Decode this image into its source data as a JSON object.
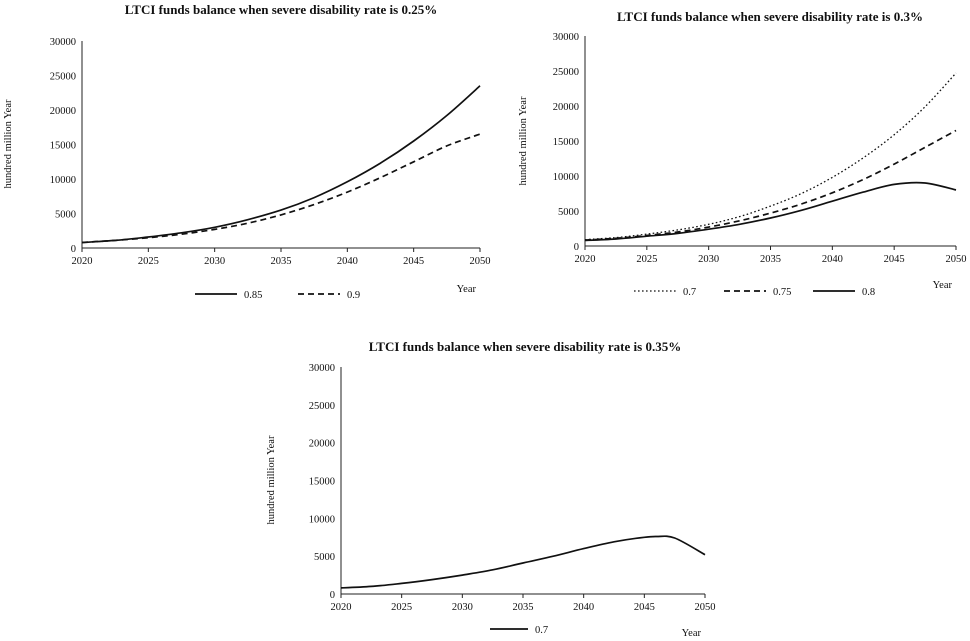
{
  "chart_data": [
    {
      "type": "line",
      "title": "LTCI funds balance when severe disability rate is 0.25%",
      "xlabel": "Year",
      "ylabel": "hundred million Year",
      "xlim": [
        2020,
        2050
      ],
      "ylim": [
        0,
        30000
      ],
      "xticks": [
        "2020",
        "2025",
        "2030",
        "2035",
        "2040",
        "2045",
        "2050"
      ],
      "yticks": [
        "0",
        "5000",
        "10000",
        "15000",
        "20000",
        "25000",
        "30000"
      ],
      "grid": false,
      "legend_position": "bottom",
      "series": [
        {
          "name": "0.85",
          "style": "solid",
          "x": [
            2020,
            2022.5,
            2025,
            2027.5,
            2030,
            2032.5,
            2035,
            2037.5,
            2040,
            2042.5,
            2045,
            2047.5,
            2050
          ],
          "values": [
            800,
            1100,
            1600,
            2200,
            3000,
            4100,
            5500,
            7300,
            9600,
            12300,
            15500,
            19200,
            23500
          ]
        },
        {
          "name": "0.9",
          "style": "dashed",
          "x": [
            2020,
            2022.5,
            2025,
            2027.5,
            2030,
            2032.5,
            2035,
            2037.5,
            2040,
            2042.5,
            2045,
            2047.5,
            2050
          ],
          "values": [
            800,
            1100,
            1500,
            2000,
            2700,
            3600,
            4800,
            6300,
            8100,
            10200,
            12500,
            14800,
            16500
          ]
        }
      ]
    },
    {
      "type": "line",
      "title": "LTCI funds balance when severe disability rate is 0.3%",
      "xlabel": "Year",
      "ylabel": "hundred million Year",
      "xlim": [
        2020,
        2050
      ],
      "ylim": [
        0,
        30000
      ],
      "xticks": [
        "2020",
        "2025",
        "2030",
        "2035",
        "2040",
        "2045",
        "2050"
      ],
      "yticks": [
        "0",
        "5000",
        "10000",
        "15000",
        "20000",
        "25000",
        "30000"
      ],
      "grid": false,
      "legend_position": "bottom",
      "series": [
        {
          "name": "0.7",
          "style": "dotted",
          "x": [
            2020,
            2022.5,
            2025,
            2027.5,
            2030,
            2032.5,
            2035,
            2037.5,
            2040,
            2042.5,
            2045,
            2047.5,
            2050
          ],
          "values": [
            900,
            1200,
            1700,
            2300,
            3100,
            4200,
            5700,
            7500,
            9800,
            12600,
            15900,
            19900,
            24700
          ]
        },
        {
          "name": "0.75",
          "style": "dashed",
          "x": [
            2020,
            2022.5,
            2025,
            2027.5,
            2030,
            2032.5,
            2035,
            2037.5,
            2040,
            2042.5,
            2045,
            2047.5,
            2050
          ],
          "values": [
            850,
            1100,
            1500,
            2000,
            2700,
            3600,
            4700,
            6000,
            7600,
            9500,
            11700,
            14100,
            16500
          ]
        },
        {
          "name": "0.8",
          "style": "solid",
          "x": [
            2020,
            2022.5,
            2025,
            2027.5,
            2030,
            2032.5,
            2035,
            2037.5,
            2040,
            2042.5,
            2045,
            2047.5,
            2050
          ],
          "values": [
            800,
            1000,
            1400,
            1800,
            2400,
            3100,
            4000,
            5100,
            6400,
            7700,
            8800,
            9000,
            8000
          ]
        }
      ]
    },
    {
      "type": "line",
      "title": "LTCI funds balance when severe disability rate is 0.35%",
      "xlabel": "Year",
      "ylabel": "hundred million Year",
      "xlim": [
        2020,
        2050
      ],
      "ylim": [
        0,
        30000
      ],
      "xticks": [
        "2020",
        "2025",
        "2030",
        "2035",
        "2040",
        "2045",
        "2050"
      ],
      "yticks": [
        "0",
        "5000",
        "10000",
        "15000",
        "20000",
        "25000",
        "30000"
      ],
      "grid": false,
      "legend_position": "bottom",
      "series": [
        {
          "name": "0.7",
          "style": "solid",
          "x": [
            2020,
            2022.5,
            2025,
            2027.5,
            2030,
            2032.5,
            2035,
            2037.5,
            2040,
            2042.5,
            2045,
            2046,
            2047.5,
            2050
          ],
          "values": [
            800,
            1000,
            1400,
            1900,
            2500,
            3200,
            4100,
            5000,
            6000,
            6900,
            7500,
            7600,
            7400,
            5200
          ]
        }
      ]
    }
  ]
}
